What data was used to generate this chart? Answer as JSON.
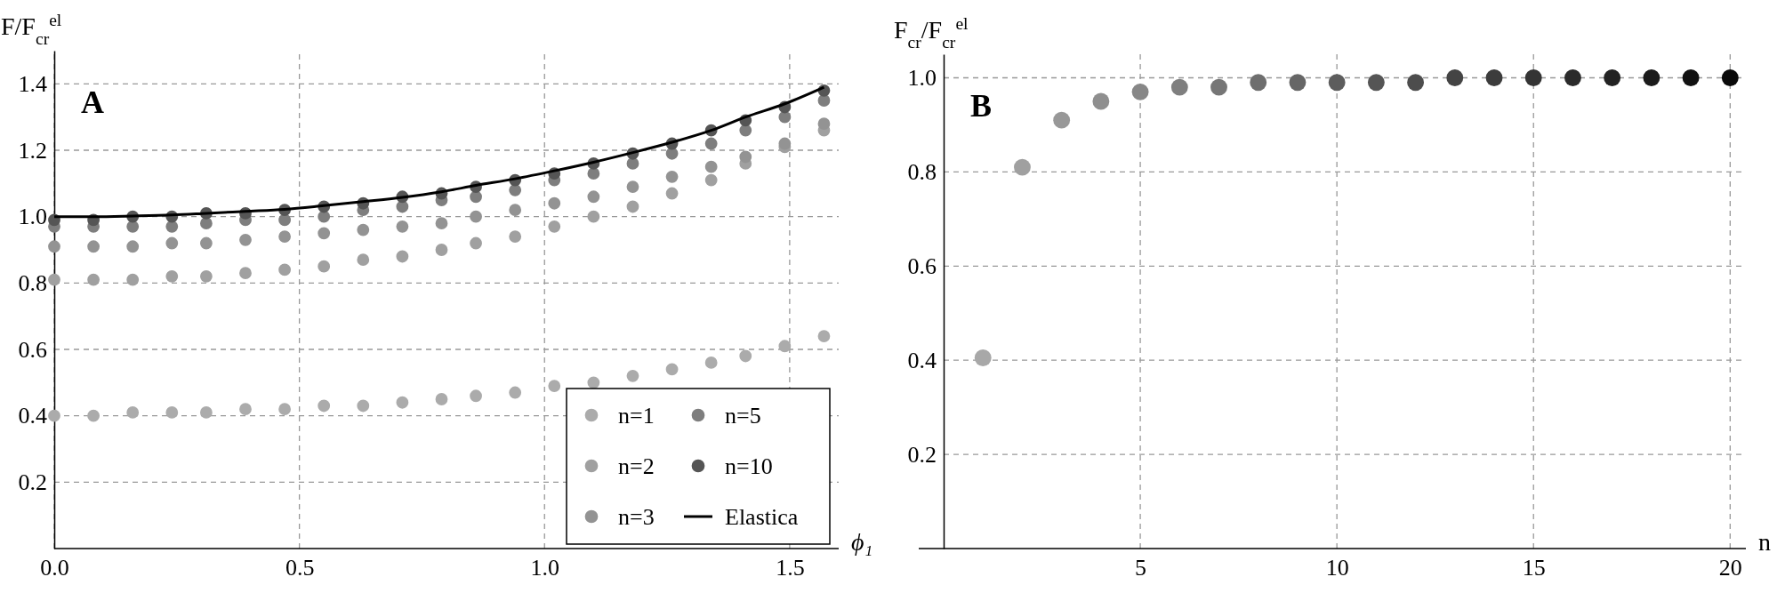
{
  "chart_data": [
    {
      "type": "scatter",
      "title": "A",
      "xlabel": "ϕ₁",
      "ylabel": "F/F$_{cr}$$^{el}$",
      "x": [
        0,
        0.08,
        0.16,
        0.24,
        0.31,
        0.39,
        0.47,
        0.55,
        0.63,
        0.71,
        0.79,
        0.86,
        0.94,
        1.02,
        1.1,
        1.18,
        1.26,
        1.34,
        1.41,
        1.49,
        1.57
      ],
      "series": [
        {
          "name": "n=1",
          "color": "#ababab",
          "values": [
            0.4,
            0.4,
            0.41,
            0.41,
            0.41,
            0.42,
            0.42,
            0.43,
            0.43,
            0.44,
            0.45,
            0.46,
            0.47,
            0.49,
            0.5,
            0.52,
            0.54,
            0.56,
            0.58,
            0.61,
            0.64
          ]
        },
        {
          "name": "n=2",
          "color": "#a0a0a0",
          "values": [
            0.81,
            0.81,
            0.81,
            0.82,
            0.82,
            0.83,
            0.84,
            0.85,
            0.87,
            0.88,
            0.9,
            0.92,
            0.94,
            0.97,
            1.0,
            1.03,
            1.07,
            1.11,
            1.16,
            1.21,
            1.26
          ]
        },
        {
          "name": "n=3",
          "color": "#939393",
          "values": [
            0.91,
            0.91,
            0.91,
            0.92,
            0.92,
            0.93,
            0.94,
            0.95,
            0.96,
            0.97,
            0.98,
            1.0,
            1.02,
            1.04,
            1.06,
            1.09,
            1.12,
            1.15,
            1.18,
            1.22,
            1.28
          ]
        },
        {
          "name": "n=5",
          "color": "#7e7e7e",
          "values": [
            0.97,
            0.97,
            0.97,
            0.97,
            0.98,
            0.99,
            0.99,
            1.0,
            1.02,
            1.03,
            1.05,
            1.06,
            1.08,
            1.11,
            1.13,
            1.16,
            1.19,
            1.22,
            1.26,
            1.3,
            1.35
          ]
        },
        {
          "name": "n=10",
          "color": "#555555",
          "values": [
            0.99,
            0.99,
            1.0,
            1.0,
            1.01,
            1.01,
            1.02,
            1.03,
            1.04,
            1.06,
            1.07,
            1.09,
            1.11,
            1.13,
            1.16,
            1.19,
            1.22,
            1.26,
            1.29,
            1.33,
            1.38
          ]
        },
        {
          "name": "Elastica",
          "type": "line",
          "marker": "none",
          "color": "#000000",
          "values": [
            1.0,
            1.0,
            1.002,
            1.005,
            1.01,
            1.016,
            1.022,
            1.033,
            1.045,
            1.058,
            1.075,
            1.094,
            1.114,
            1.138,
            1.164,
            1.193,
            1.224,
            1.26,
            1.3,
            1.34,
            1.39
          ]
        }
      ],
      "xlim": [
        0,
        1.6
      ],
      "ylim": [
        0,
        1.5
      ],
      "xticks": [
        {
          "value": 0,
          "label": "0.0"
        },
        0.5,
        {
          "value": 1,
          "label": "1.0"
        },
        1.5
      ],
      "yticks": [
        0.2,
        0.4,
        0.6,
        0.8,
        {
          "value": 1,
          "label": "1.0"
        },
        1.2,
        1.4
      ],
      "grid": true,
      "legend": "bottom right",
      "marker": "circle"
    },
    {
      "type": "scatter",
      "title": "B",
      "xlabel": "n",
      "ylabel": "F$_{cr}$/F$_{cr}$$^{el}$",
      "x": [
        1,
        2,
        3,
        4,
        5,
        6,
        7,
        8,
        9,
        10,
        11,
        12,
        13,
        14,
        15,
        16,
        17,
        18,
        19,
        20
      ],
      "values": [
        0.405,
        0.81,
        0.91,
        0.95,
        0.97,
        0.98,
        0.98,
        0.99,
        0.99,
        0.99,
        0.99,
        0.99,
        1.0,
        1.0,
        1.0,
        1.0,
        1.0,
        1.0,
        1.0,
        1.0
      ],
      "colors": [
        "#a8a8a8",
        "#a0a0a0",
        "#989898",
        "#8f8f8f",
        "#878787",
        "#7f7f7f",
        "#767676",
        "#6e6e6e",
        "#666666",
        "#5d5d5d",
        "#555555",
        "#4d4d4d",
        "#444444",
        "#3c3c3c",
        "#343434",
        "#2b2b2b",
        "#232323",
        "#1b1b1b",
        "#121212",
        "#0a0a0a"
      ],
      "xlim": [
        0,
        20.4
      ],
      "ylim": [
        0,
        1.05
      ],
      "xticks": [
        5,
        10,
        15,
        20
      ],
      "yticks": [
        0.2,
        0.4,
        0.6,
        0.8,
        {
          "value": 1,
          "label": "1.0"
        }
      ],
      "grid": true,
      "marker": "circle"
    }
  ]
}
